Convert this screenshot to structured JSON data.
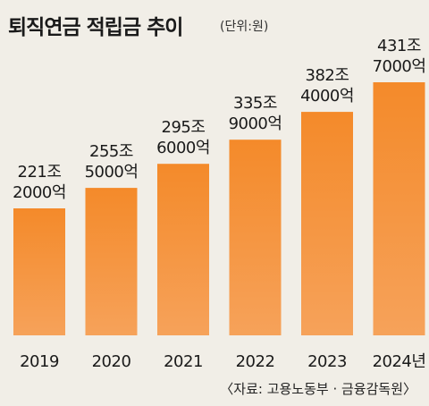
{
  "chart_data": {
    "type": "bar",
    "title": "퇴직연금 적립금 추이",
    "unit": "(단위:원)",
    "source": "〈자료: 고용노동부 · 금융감독원〉",
    "categories": [
      "2019",
      "2020",
      "2021",
      "2022",
      "2023",
      "2024년"
    ],
    "values": [
      2212000,
      2555000,
      2956000,
      3359000,
      3824000,
      4317000
    ],
    "value_unit": "억원",
    "value_labels": [
      [
        "221조",
        "2000억"
      ],
      [
        "255조",
        "5000억"
      ],
      [
        "295조",
        "6000억"
      ],
      [
        "335조",
        "9000억"
      ],
      [
        "382조",
        "4000억"
      ],
      [
        "431조",
        "7000억"
      ]
    ],
    "xlabel": "",
    "ylabel": "",
    "grid": false,
    "colors": {
      "bar_top": "#f48a2a",
      "bar_bottom": "#f6a25a",
      "background": "#f1eee7"
    }
  }
}
